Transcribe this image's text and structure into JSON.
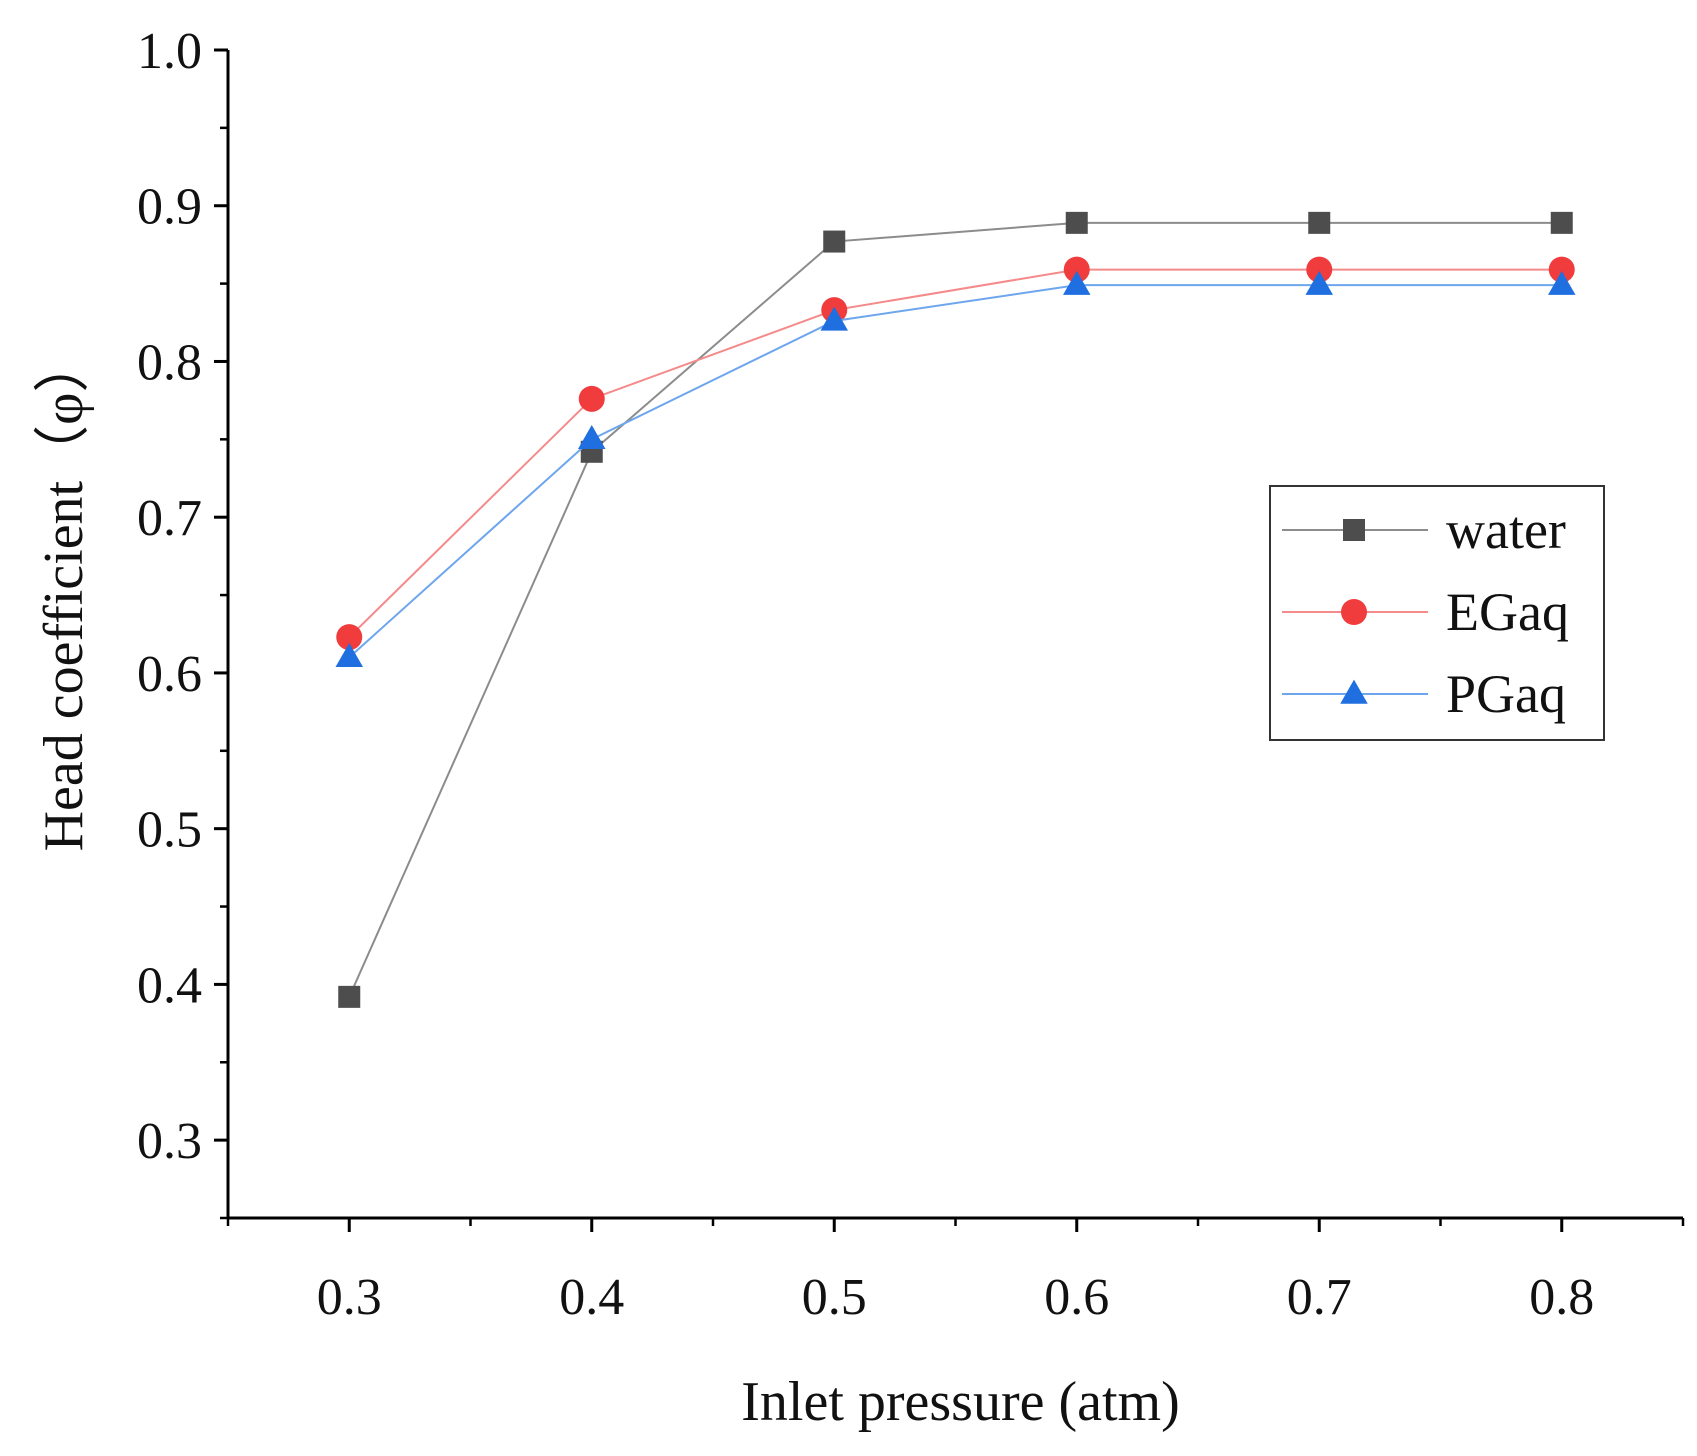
{
  "chart_data": {
    "type": "line",
    "title": "",
    "xlabel": "Inlet pressure (atm)",
    "ylabel": "Head coefficient（φ）",
    "xlim": [
      0.25,
      0.85
    ],
    "ylim": [
      0.25,
      1.0
    ],
    "x_ticks": [
      "0.3",
      "0.4",
      "0.5",
      "0.6",
      "0.7",
      "0.8"
    ],
    "y_ticks": [
      "0.3",
      "0.4",
      "0.5",
      "0.6",
      "0.7",
      "0.8",
      "0.9",
      "1.0"
    ],
    "x": [
      0.3,
      0.4,
      0.5,
      0.6,
      0.7,
      0.8
    ],
    "series": [
      {
        "name": "water",
        "marker": "square",
        "color": "#4d4d4d",
        "line_color": "#8c8c8c",
        "values": [
          0.392,
          0.742,
          0.877,
          0.889,
          0.889,
          0.889
        ]
      },
      {
        "name": "EGaq",
        "marker": "circle",
        "color": "#f03c3c",
        "line_color": "#f58a8a",
        "values": [
          0.623,
          0.776,
          0.833,
          0.859,
          0.859,
          0.859
        ]
      },
      {
        "name": "PGaq",
        "marker": "triangle",
        "color": "#1f6fe0",
        "line_color": "#6ea6ee",
        "values": [
          0.61,
          0.75,
          0.826,
          0.849,
          0.849,
          0.849
        ]
      }
    ],
    "legend": {
      "position": "right-middle"
    },
    "grid": false
  }
}
